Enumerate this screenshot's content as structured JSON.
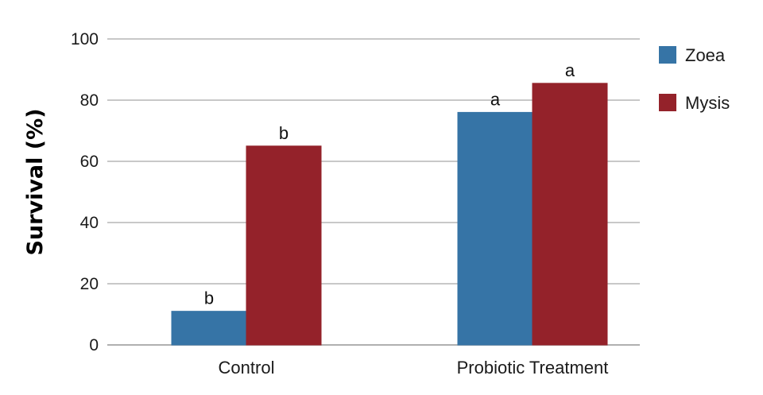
{
  "chart_data": {
    "type": "bar",
    "title": "",
    "xlabel": "",
    "ylabel": "Survival (%)",
    "categories": [
      "Control",
      "Probiotic Treatment"
    ],
    "series": [
      {
        "name": "Zoea",
        "color": "#3674a6",
        "values": [
          11,
          76
        ],
        "labels": [
          "b",
          "a"
        ]
      },
      {
        "name": "Mysis",
        "color": "#94222a",
        "values": [
          65,
          85.5
        ],
        "labels": [
          "b",
          "a"
        ]
      }
    ],
    "ylim": [
      0,
      100
    ],
    "yticks": [
      0,
      20,
      40,
      60,
      80,
      100
    ],
    "grid": true,
    "legend": "top-right"
  }
}
